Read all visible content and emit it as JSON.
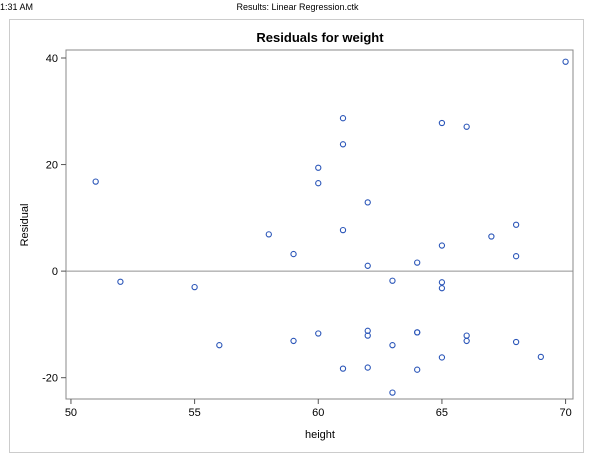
{
  "header": {
    "time": "1:31 AM",
    "title": "Results: Linear Regression.ctk"
  },
  "chart_data": {
    "type": "scatter",
    "title": "Residuals for weight",
    "xlabel": "height",
    "ylabel": "Residual",
    "xlim": [
      49.8,
      70.3
    ],
    "ylim": [
      -24.0,
      41.5
    ],
    "xticks": [
      50,
      55,
      60,
      65,
      70
    ],
    "yticks": [
      -20,
      0,
      20,
      40
    ],
    "reference_line_y": 0,
    "grid": false,
    "marker_color": "#2a55b8",
    "series": [
      {
        "points": [
          [
            51,
            16.8
          ],
          [
            52,
            -2.0
          ],
          [
            55,
            -3.0
          ],
          [
            56,
            -13.9
          ],
          [
            58,
            6.9
          ],
          [
            59,
            3.2
          ],
          [
            59,
            -13.1
          ],
          [
            60,
            19.4
          ],
          [
            60,
            16.5
          ],
          [
            60,
            -11.7
          ],
          [
            61,
            28.7
          ],
          [
            61,
            23.8
          ],
          [
            61,
            7.7
          ],
          [
            61,
            -18.3
          ],
          [
            62,
            12.9
          ],
          [
            62,
            1.0
          ],
          [
            62,
            -11.2
          ],
          [
            62,
            -12.1
          ],
          [
            62,
            -18.1
          ],
          [
            63,
            -1.8
          ],
          [
            63,
            -13.9
          ],
          [
            63,
            -22.8
          ],
          [
            64,
            1.6
          ],
          [
            64,
            -11.5
          ],
          [
            64,
            -11.5
          ],
          [
            64,
            -18.5
          ],
          [
            65,
            27.8
          ],
          [
            65,
            4.8
          ],
          [
            65,
            -2.1
          ],
          [
            65,
            -3.2
          ],
          [
            65,
            -16.2
          ],
          [
            66,
            27.1
          ],
          [
            66,
            -12.1
          ],
          [
            66,
            -13.1
          ],
          [
            67,
            6.5
          ],
          [
            68,
            8.7
          ],
          [
            68,
            2.8
          ],
          [
            68,
            -13.3
          ],
          [
            69,
            -16.1
          ],
          [
            70,
            39.3
          ]
        ]
      }
    ]
  }
}
